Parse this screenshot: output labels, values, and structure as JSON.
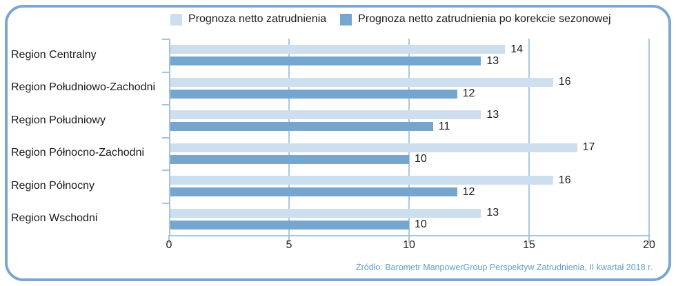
{
  "legend": [
    {
      "label": "Prognoza netto zatrudnienia",
      "color": "#CDDEEF"
    },
    {
      "label": "Prognoza netto zatrudnienia po korekcie sezonowej",
      "color": "#74A6CF"
    }
  ],
  "chart_data": {
    "type": "bar",
    "orientation": "horizontal",
    "title": "",
    "categories": [
      "Region Centralny",
      "Region Południowo-Zachodni",
      "Region Południowy",
      "Region Północno-Zachodni",
      "Region Północny",
      "Region Wschodni"
    ],
    "series": [
      {
        "name": "Prognoza netto zatrudnienia",
        "color": "#CDDEEF",
        "values": [
          14,
          16,
          13,
          17,
          16,
          13
        ]
      },
      {
        "name": "Prognoza netto zatrudnienia po korekcie sezonowej",
        "color": "#74A6CF",
        "values": [
          13,
          12,
          11,
          10,
          12,
          10
        ]
      }
    ],
    "xlim": [
      0,
      20
    ],
    "x_ticks": [
      0,
      5,
      10,
      15,
      20
    ],
    "grid": true,
    "legend_position": "top",
    "value_labels": true
  },
  "source": "Źródło: Barometr ManpowerGroup Perspektyw Zatrudnienia, II kwartał 2018 r.",
  "colors": {
    "frame_border": "#7CA6D0",
    "axis": "#A4C3DD",
    "gridline": "#ABC8E0",
    "text": "#1a1a1a",
    "source_text": "#5F9CCF",
    "background": "#ffffff"
  }
}
